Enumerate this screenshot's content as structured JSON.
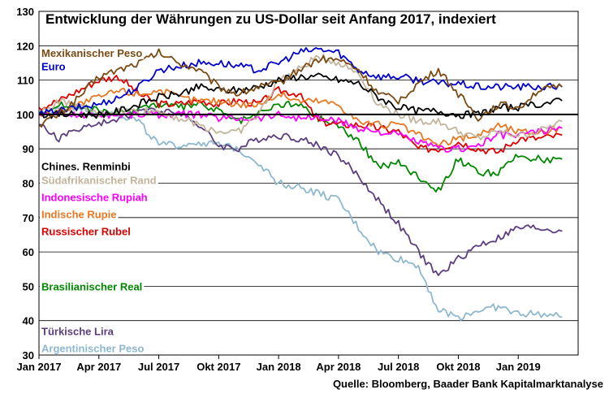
{
  "chart_data": {
    "type": "line",
    "title": "Entwicklung der Währungen zu US-Dollar seit Anfang 2017, indexiert",
    "source": "Quelle: Bloomberg, Baader Bank Kapitalmarktanalyse",
    "xlabel": "",
    "ylabel": "",
    "ylim": [
      30,
      130
    ],
    "yticks": [
      30,
      40,
      50,
      60,
      70,
      80,
      90,
      100,
      110,
      120,
      130
    ],
    "x_ticks": [
      {
        "label": "Jan 2017",
        "t": 0
      },
      {
        "label": "Apr 2017",
        "t": 3
      },
      {
        "label": "Jul 2017",
        "t": 6
      },
      {
        "label": "Okt 2017",
        "t": 9
      },
      {
        "label": "Jan 2018",
        "t": 12
      },
      {
        "label": "Apr 2018",
        "t": 15
      },
      {
        "label": "Jul 2018",
        "t": 18
      },
      {
        "label": "Okt 2018",
        "t": 21
      },
      {
        "label": "Jan 2019",
        "t": 24
      }
    ],
    "xlim": [
      0,
      27
    ],
    "grid": true,
    "reference_line": 100,
    "x": [
      0,
      1,
      2,
      3,
      4,
      5,
      6,
      7,
      8,
      9,
      10,
      11,
      12,
      13,
      14,
      15,
      16,
      17,
      18,
      19,
      20,
      21,
      22,
      23,
      24,
      25,
      26.2
    ],
    "series": [
      {
        "name": "Mexikanischer Peso",
        "color": "#7B4A12",
        "values": [
          97,
          100,
          105,
          111,
          113,
          115,
          118,
          115,
          113,
          108,
          106,
          108,
          109,
          113,
          116,
          116,
          113,
          106,
          104,
          109,
          113,
          106,
          99,
          103,
          102,
          107,
          108
        ],
        "label_value": 118
      },
      {
        "name": "Euro",
        "color": "#0000CC",
        "values": [
          100,
          101,
          102,
          103,
          105,
          108,
          113,
          114,
          115,
          115,
          114,
          113,
          115,
          118,
          119,
          118,
          113,
          111,
          111,
          110,
          109,
          109,
          108,
          108,
          108,
          108,
          108
        ],
        "label_value": 114
      },
      {
        "name": "Chines. Renminbi",
        "color": "#000000",
        "values": [
          100,
          100,
          100,
          100,
          101,
          103,
          105,
          106,
          108,
          107,
          107,
          108,
          110,
          111,
          111,
          110,
          109,
          105,
          102,
          101,
          101,
          100,
          100,
          102,
          102,
          103,
          104
        ],
        "label_value": 85
      },
      {
        "name": "Südafrikanischer Rand",
        "color": "#C2B59B",
        "values": [
          100,
          104,
          102,
          100,
          101,
          101,
          101,
          99,
          97,
          95,
          95,
          100,
          110,
          113,
          117,
          115,
          112,
          103,
          100,
          98,
          98,
          95,
          93,
          95,
          94,
          95,
          98
        ],
        "label_value": 81
      },
      {
        "name": "Indonesische Rupiah",
        "color": "#FF00FF",
        "values": [
          100,
          100,
          100,
          100,
          100,
          100,
          100,
          100,
          100,
          99,
          99,
          99,
          100,
          99,
          99,
          98,
          96,
          95,
          94,
          92,
          90,
          90,
          91,
          94,
          94,
          95,
          96
        ],
        "label_value": 76
      },
      {
        "name": "Indische Rupie",
        "color": "#E87722",
        "values": [
          100,
          101,
          103,
          105,
          107,
          106,
          107,
          105,
          104,
          104,
          103,
          103,
          106,
          104,
          104,
          103,
          98,
          97,
          97,
          94,
          91,
          93,
          94,
          97,
          95,
          95,
          96
        ],
        "label_value": 71
      },
      {
        "name": "Russischer Rubel",
        "color": "#DD0000",
        "values": [
          102,
          104,
          107,
          110,
          111,
          106,
          103,
          103,
          104,
          103,
          104,
          103,
          107,
          106,
          98,
          97,
          97,
          96,
          95,
          90,
          90,
          92,
          90,
          89,
          93,
          93,
          94
        ],
        "label_value": 66
      },
      {
        "name": "Brasilianischer Real",
        "color": "#008800",
        "values": [
          100,
          103,
          102,
          101,
          100,
          102,
          103,
          102,
          103,
          101,
          98,
          100,
          103,
          103,
          99,
          97,
          92,
          85,
          86,
          82,
          78,
          87,
          83,
          83,
          88,
          87,
          87
        ],
        "label_value": 50
      },
      {
        "name": "Türkische Lira",
        "color": "#5B3E7E",
        "values": [
          97,
          93,
          96,
          97,
          99,
          101,
          101,
          101,
          97,
          91,
          90,
          93,
          94,
          93,
          91,
          88,
          82,
          75,
          68,
          60,
          53,
          58,
          62,
          64,
          67,
          67,
          66
        ],
        "label_value": 37
      },
      {
        "name": "Argentinischer Peso",
        "color": "#8EB8CE",
        "values": [
          100,
          101,
          102,
          101,
          100,
          98,
          91,
          91,
          92,
          91,
          90,
          86,
          80,
          79,
          77,
          75,
          67,
          60,
          58,
          56,
          43,
          41,
          43,
          44,
          42,
          42,
          41
        ],
        "label_value": 32
      }
    ]
  }
}
